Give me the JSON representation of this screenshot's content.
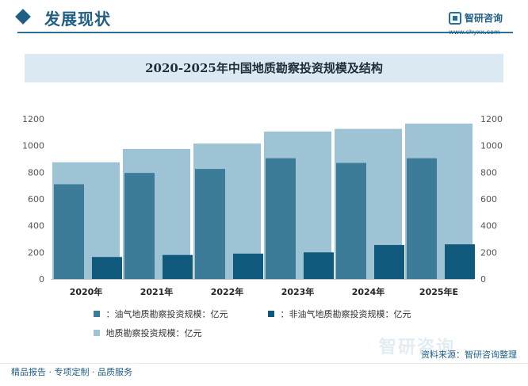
{
  "header": {
    "title": "发展现状",
    "brand_name": "智研咨询",
    "brand_url": "www.chyxx.com"
  },
  "chart_title": "2020-2025年中国地质勘察投资规模及结构",
  "chart_data": {
    "type": "bar",
    "title": "2020-2025年中国地质勘察投资规模及结构",
    "categories": [
      "2020年",
      "2021年",
      "2022年",
      "2023年",
      "2024年",
      "2025年E"
    ],
    "series": [
      {
        "name": "油气地质勘察投资规模：亿元",
        "values": [
          710,
          795,
          825,
          905,
          870,
          905
        ],
        "color": "#3c7c99"
      },
      {
        "name": "非油气地质勘察投资规模：亿元",
        "values": [
          165,
          180,
          190,
          200,
          255,
          260
        ],
        "color": "#0f5a7c"
      },
      {
        "name": "地质勘察投资规模：亿元",
        "values": [
          875,
          975,
          1015,
          1105,
          1125,
          1165
        ],
        "color": "#9dc3d4"
      }
    ],
    "yticks": [
      0,
      200,
      400,
      600,
      800,
      1000,
      1200
    ],
    "ylim": [
      0,
      1200
    ],
    "right_axis_ticks": [
      0,
      200,
      400,
      600,
      800,
      1000,
      1200
    ],
    "grid": false,
    "legend_position": "bottom"
  },
  "legend": {
    "items": [
      {
        "label": "：油气地质勘察投资规模：亿元",
        "color": "#3c7c99"
      },
      {
        "label": "：非油气地质勘察投资规模：亿元",
        "color": "#0f5a7c"
      },
      {
        "label": "地质勘察投资规模：亿元",
        "color": "#9dc3d4"
      }
    ]
  },
  "footer": {
    "left_text": "精品报告 · 专项定制 · 品质服务",
    "source_text": "资料来源：智研咨询整理",
    "watermark": "智研咨询"
  }
}
